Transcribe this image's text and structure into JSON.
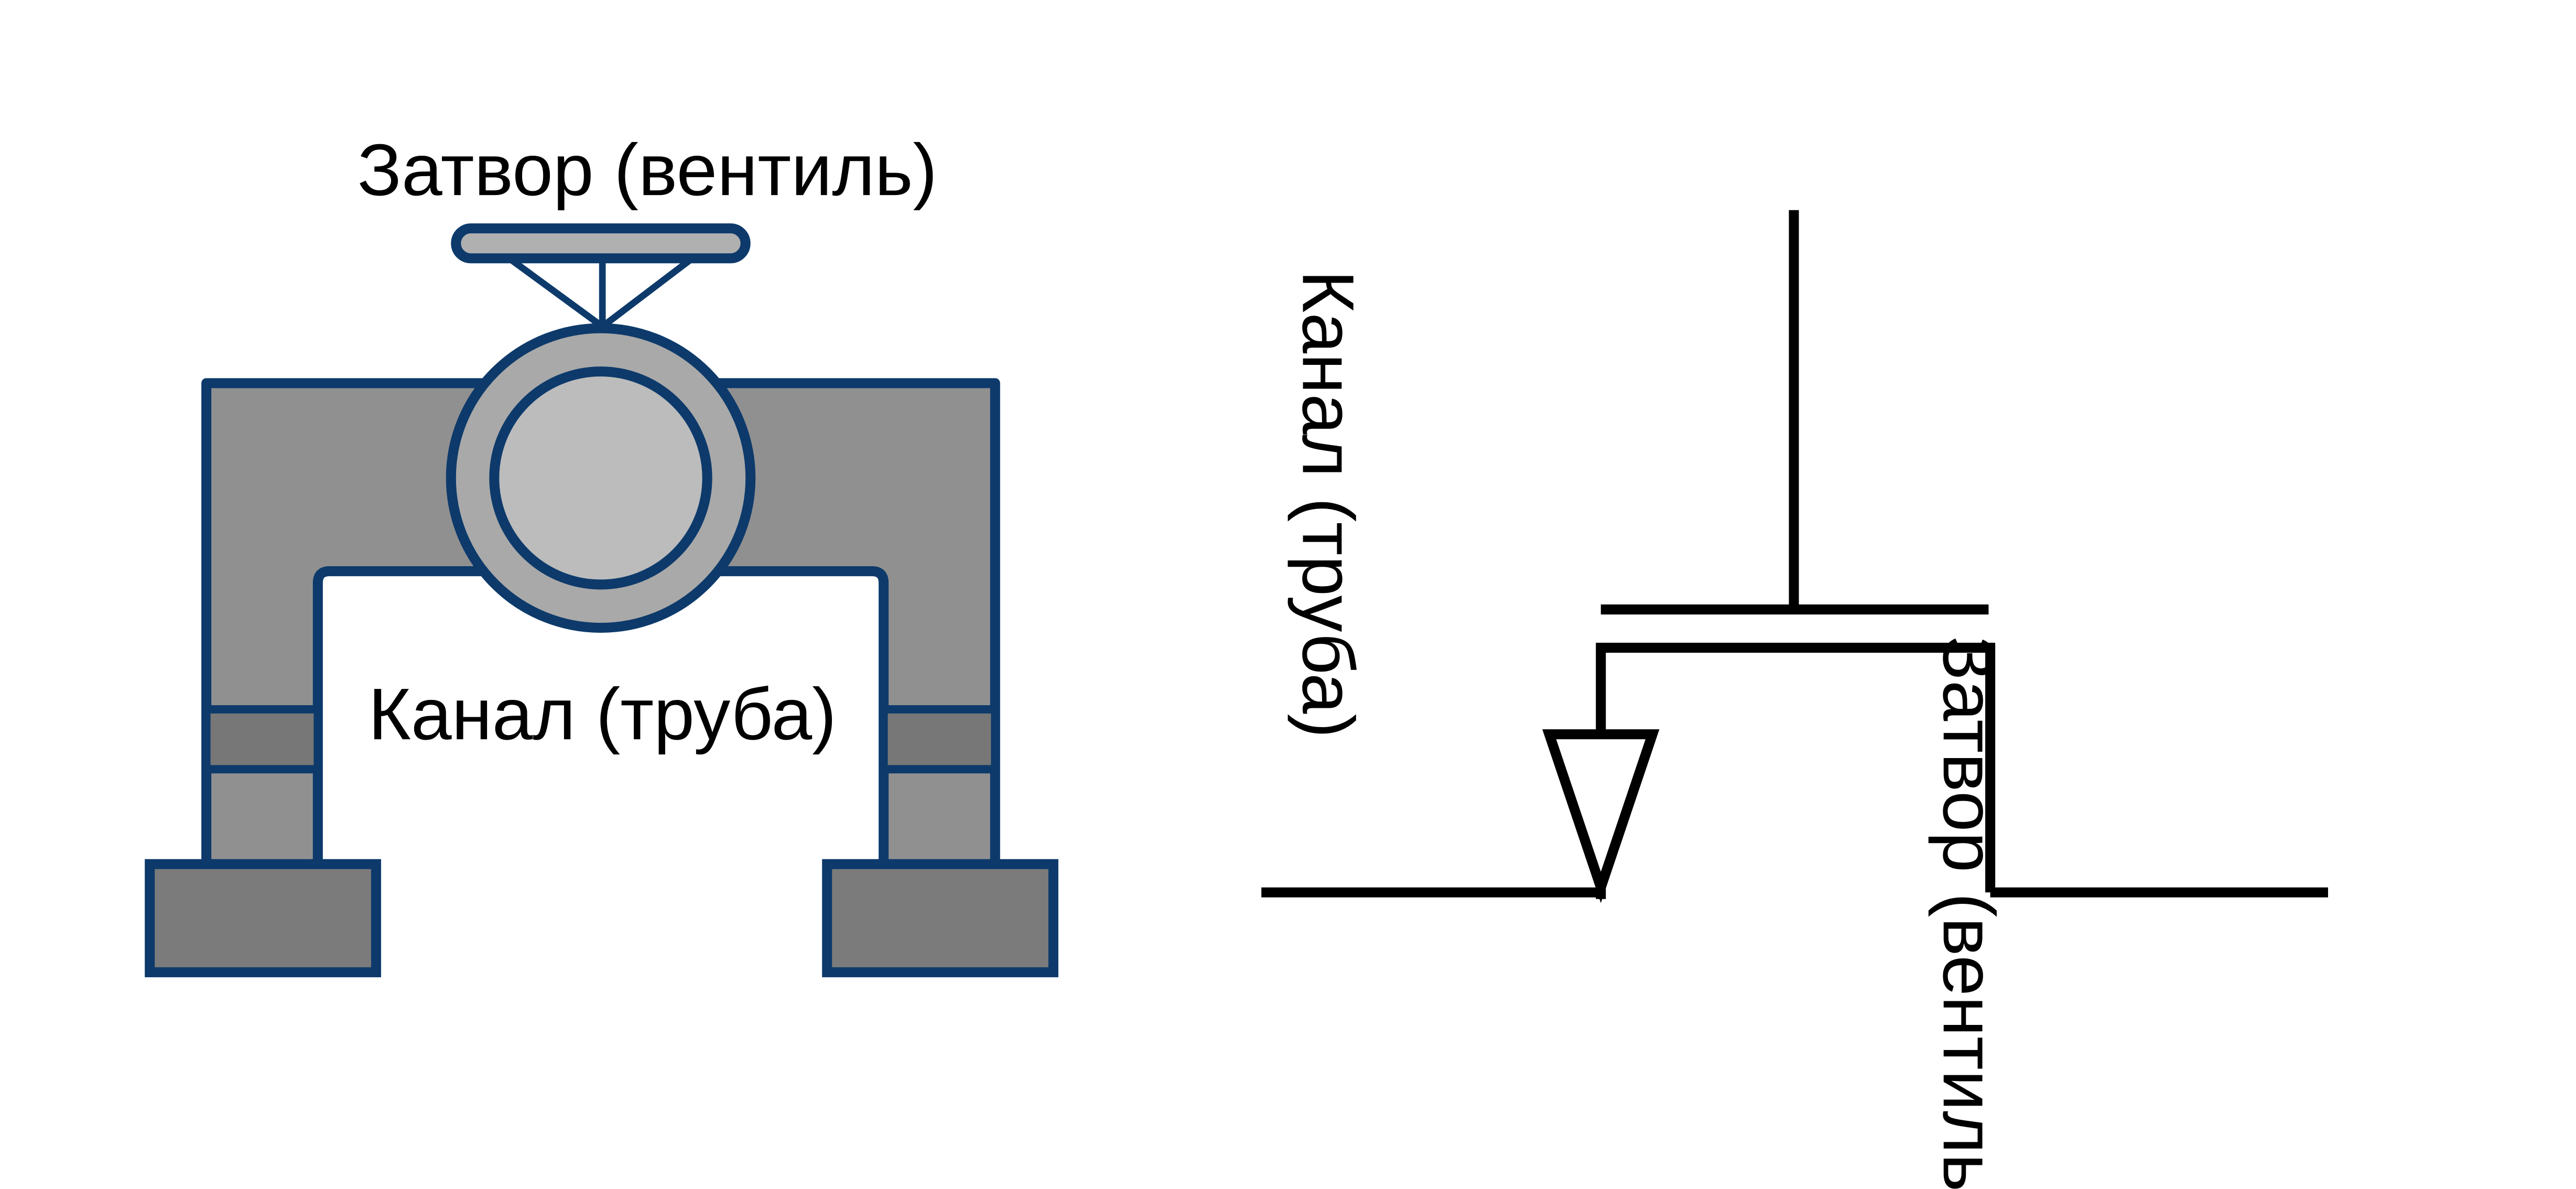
{
  "labels": {
    "valve_gate": "Затвор (вентиль)",
    "valve_channel": "Канал (труба)",
    "transistor_channel": "Канал (труба)",
    "transistor_gate": "Затвор (вентиль)"
  },
  "colors": {
    "outline": "#0d3a6b",
    "pipe_fill": "#909090",
    "flange_fill": "#777777",
    "foot_fill": "#7b7b7b",
    "ring_fill": "#a9a9a9",
    "disc_fill": "#bcbcbc",
    "handle_fill": "#b0b0b0",
    "wire": "#000000"
  },
  "icons": {
    "valve": "valve-icon",
    "transistor": "transistor-icon"
  }
}
